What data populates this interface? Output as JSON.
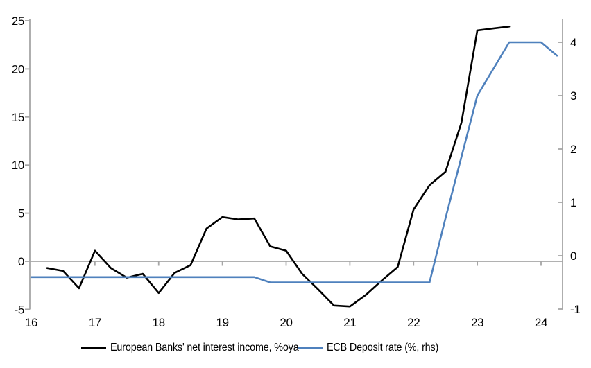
{
  "chart_data": {
    "type": "line",
    "title": "",
    "grid": "zero-line-only",
    "legend_position": "bottom",
    "x_axis": {
      "tick_labels": [
        "16",
        "17",
        "18",
        "19",
        "20",
        "21",
        "22",
        "23",
        "24"
      ],
      "tick_years": [
        2016,
        2017,
        2018,
        2019,
        2020,
        2021,
        2022,
        2023,
        2024
      ],
      "range": [
        2016,
        2024.45
      ]
    },
    "left_axis": {
      "ticks": [
        25,
        20,
        15,
        10,
        5,
        0,
        -5
      ],
      "range": [
        -5.4,
        25.3
      ]
    },
    "right_axis": {
      "ticks": [
        4,
        3,
        2,
        1,
        0,
        -1
      ],
      "range": [
        -1.1,
        4.55
      ]
    },
    "series": [
      {
        "name": "European Banks' net interest income, %oya",
        "axis": "left",
        "color": "#000000",
        "x": [
          2016.25,
          2016.5,
          2016.75,
          2017.0,
          2017.25,
          2017.5,
          2017.75,
          2018.0,
          2018.25,
          2018.5,
          2018.75,
          2019.0,
          2019.25,
          2019.5,
          2019.75,
          2020.0,
          2020.25,
          2020.5,
          2020.75,
          2021.0,
          2021.25,
          2021.5,
          2021.75,
          2022.0,
          2022.25,
          2022.5,
          2022.75,
          2023.0,
          2023.25,
          2023.5
        ],
        "values": [
          -0.7,
          -1.0,
          -2.8,
          1.1,
          -0.7,
          -1.7,
          -1.3,
          -3.3,
          -1.2,
          -0.4,
          3.4,
          4.6,
          4.35,
          4.45,
          1.55,
          1.1,
          -1.3,
          -2.9,
          -4.6,
          -4.7,
          -3.5,
          -2.0,
          -0.6,
          5.4,
          7.9,
          9.3,
          14.4,
          24.0,
          24.2,
          24.4
        ]
      },
      {
        "name": "ECB Deposit rate (%, rhs)",
        "axis": "right",
        "color": "#4f81bd",
        "x": [
          2016.0,
          2016.25,
          2016.5,
          2016.75,
          2017.0,
          2017.25,
          2017.5,
          2017.75,
          2018.0,
          2018.25,
          2018.5,
          2018.75,
          2019.0,
          2019.25,
          2019.5,
          2019.75,
          2020.0,
          2020.25,
          2020.5,
          2020.75,
          2021.0,
          2021.25,
          2021.5,
          2021.75,
          2022.0,
          2022.25,
          2022.5,
          2022.75,
          2023.0,
          2023.25,
          2023.5,
          2023.75,
          2024.0,
          2024.25
        ],
        "values": [
          -0.4,
          -0.4,
          -0.4,
          -0.4,
          -0.4,
          -0.4,
          -0.4,
          -0.4,
          -0.4,
          -0.4,
          -0.4,
          -0.4,
          -0.4,
          -0.4,
          -0.4,
          -0.5,
          -0.5,
          -0.5,
          -0.5,
          -0.5,
          -0.5,
          -0.5,
          -0.5,
          -0.5,
          -0.5,
          -0.5,
          0.7,
          1.85,
          3.0,
          3.5,
          4.0,
          4.0,
          4.0,
          3.75
        ]
      }
    ]
  },
  "legend": {
    "items": [
      {
        "label": "European Banks' net interest income, %oya",
        "color": "#000000"
      },
      {
        "label": "ECB Deposit rate (%, rhs)",
        "color": "#4f81bd"
      }
    ]
  },
  "colors": {
    "axis": "#a6a6a6",
    "text": "#000000",
    "background": "#ffffff",
    "series_black": "#000000",
    "series_blue": "#4f81bd"
  }
}
